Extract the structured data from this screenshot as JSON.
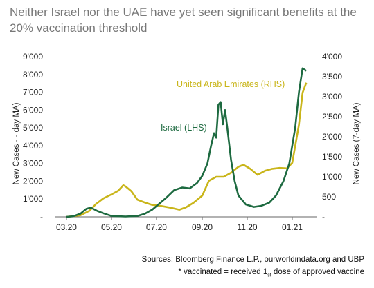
{
  "title": "Neither Israel nor the UAE have yet seen significant benefits at the 20% vaccination threshold",
  "footer": {
    "sources": "Sources: Bloomberg Finance L.P., ourworldindata.org and UBP",
    "note_a": "* vaccinated = received 1",
    "note_sub": "st",
    "note_b": " dose of approved vaccine"
  },
  "colors": {
    "israel": "#1d6a40",
    "uae": "#c9b51a",
    "axis": "#666666"
  },
  "chart_data": {
    "type": "line",
    "x_ticks": [
      "03.20",
      "05.20",
      "07.20",
      "09.20",
      "11.20",
      "01.21"
    ],
    "x_range": [
      "2020-02-15",
      "2021-02-01"
    ],
    "left_axis": {
      "label": "New Cases - - day MA)",
      "ticks": [
        "-",
        "1'000",
        "2'000",
        "3'000",
        "4'000",
        "5'000",
        "6'000",
        "7'000",
        "8'000",
        "9'000"
      ],
      "range": [
        0,
        9000
      ]
    },
    "right_axis": {
      "label": "New Cases (7-day MA)",
      "ticks": [
        "-",
        "500",
        "1'000",
        "1'500",
        "2'000",
        "2'500",
        "3'000",
        "3'500",
        "4'000"
      ],
      "range": [
        0,
        4000
      ]
    },
    "series": [
      {
        "name": "Israel (LHS)",
        "axis": "left",
        "points": [
          [
            "2020-03-01",
            0
          ],
          [
            "2020-03-10",
            30
          ],
          [
            "2020-03-20",
            180
          ],
          [
            "2020-03-28",
            450
          ],
          [
            "2020-04-03",
            520
          ],
          [
            "2020-04-12",
            330
          ],
          [
            "2020-04-20",
            200
          ],
          [
            "2020-05-01",
            50
          ],
          [
            "2020-05-20",
            20
          ],
          [
            "2020-06-05",
            50
          ],
          [
            "2020-06-15",
            170
          ],
          [
            "2020-06-25",
            400
          ],
          [
            "2020-07-05",
            750
          ],
          [
            "2020-07-15",
            1100
          ],
          [
            "2020-07-25",
            1500
          ],
          [
            "2020-08-05",
            1650
          ],
          [
            "2020-08-15",
            1600
          ],
          [
            "2020-08-25",
            1900
          ],
          [
            "2020-09-01",
            2300
          ],
          [
            "2020-09-08",
            3000
          ],
          [
            "2020-09-13",
            4000
          ],
          [
            "2020-09-17",
            4700
          ],
          [
            "2020-09-20",
            4450
          ],
          [
            "2020-09-23",
            6300
          ],
          [
            "2020-09-26",
            6450
          ],
          [
            "2020-09-29",
            5200
          ],
          [
            "2020-10-02",
            6000
          ],
          [
            "2020-10-05",
            5000
          ],
          [
            "2020-10-10",
            3200
          ],
          [
            "2020-10-15",
            2000
          ],
          [
            "2020-10-20",
            1200
          ],
          [
            "2020-10-30",
            700
          ],
          [
            "2020-11-10",
            560
          ],
          [
            "2020-11-20",
            620
          ],
          [
            "2020-12-01",
            800
          ],
          [
            "2020-12-10",
            1200
          ],
          [
            "2020-12-20",
            2000
          ],
          [
            "2020-12-28",
            3000
          ],
          [
            "2021-01-05",
            5000
          ],
          [
            "2021-01-10",
            7000
          ],
          [
            "2021-01-15",
            8350
          ],
          [
            "2021-01-20",
            8200
          ]
        ]
      },
      {
        "name": "United Arab Emirates (RHS)",
        "axis": "right",
        "points": [
          [
            "2020-03-01",
            0
          ],
          [
            "2020-03-20",
            40
          ],
          [
            "2020-04-01",
            150
          ],
          [
            "2020-04-10",
            320
          ],
          [
            "2020-04-20",
            460
          ],
          [
            "2020-05-01",
            560
          ],
          [
            "2020-05-10",
            650
          ],
          [
            "2020-05-17",
            790
          ],
          [
            "2020-05-20",
            760
          ],
          [
            "2020-05-28",
            640
          ],
          [
            "2020-06-05",
            430
          ],
          [
            "2020-06-15",
            360
          ],
          [
            "2020-06-25",
            300
          ],
          [
            "2020-07-05",
            280
          ],
          [
            "2020-07-20",
            230
          ],
          [
            "2020-08-01",
            180
          ],
          [
            "2020-08-10",
            240
          ],
          [
            "2020-08-20",
            350
          ],
          [
            "2020-09-01",
            530
          ],
          [
            "2020-09-10",
            900
          ],
          [
            "2020-09-20",
            1000
          ],
          [
            "2020-09-30",
            1000
          ],
          [
            "2020-10-10",
            1100
          ],
          [
            "2020-10-20",
            1250
          ],
          [
            "2020-10-27",
            1300
          ],
          [
            "2020-11-05",
            1200
          ],
          [
            "2020-11-15",
            1050
          ],
          [
            "2020-11-25",
            1150
          ],
          [
            "2020-12-05",
            1200
          ],
          [
            "2020-12-15",
            1220
          ],
          [
            "2020-12-25",
            1210
          ],
          [
            "2021-01-01",
            1350
          ],
          [
            "2021-01-10",
            2300
          ],
          [
            "2021-01-15",
            3100
          ],
          [
            "2021-01-20",
            3350
          ]
        ]
      }
    ]
  }
}
